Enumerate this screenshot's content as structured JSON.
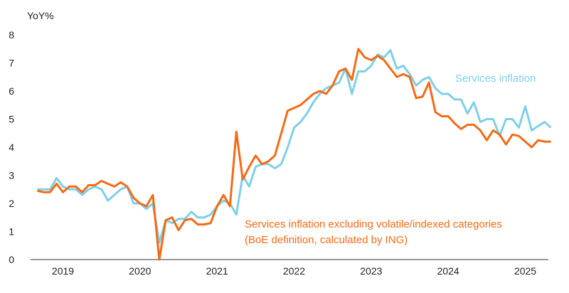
{
  "chart_data": {
    "type": "line",
    "ylabel": "YoY%",
    "ylim": [
      0,
      8
    ],
    "yticks": [
      0,
      1,
      2,
      3,
      4,
      5,
      6,
      7,
      8
    ],
    "xlim": [
      2018.58,
      2025.3
    ],
    "xticks": [
      {
        "label": "2019",
        "x": 2019.0
      },
      {
        "label": "2020",
        "x": 2020.0
      },
      {
        "label": "2021",
        "x": 2021.0
      },
      {
        "label": "2022",
        "x": 2022.0
      },
      {
        "label": "2023",
        "x": 2023.0
      },
      {
        "label": "2024",
        "x": 2024.0
      },
      {
        "label": "2025",
        "x": 2025.0
      }
    ],
    "series": [
      {
        "name": "Services inflation",
        "color": "#7fcfe8",
        "annotation": "Services inflation",
        "x_start": 2018.667,
        "step_months": 1,
        "values": [
          2.5,
          2.5,
          2.5,
          2.9,
          2.6,
          2.5,
          2.5,
          2.3,
          2.5,
          2.6,
          2.5,
          2.1,
          2.3,
          2.5,
          2.6,
          2.0,
          2.0,
          1.8,
          2.0,
          0.6,
          1.4,
          1.3,
          1.45,
          1.45,
          1.7,
          1.5,
          1.5,
          1.6,
          1.9,
          2.1,
          2.0,
          1.6,
          3.0,
          2.6,
          3.3,
          3.4,
          3.4,
          3.25,
          3.4,
          4.0,
          4.7,
          4.9,
          5.2,
          5.6,
          5.9,
          6.1,
          6.2,
          6.3,
          6.8,
          5.9,
          6.7,
          6.7,
          6.9,
          7.3,
          7.2,
          7.45,
          6.8,
          6.9,
          6.6,
          6.2,
          6.4,
          6.5,
          6.1,
          5.9,
          5.9,
          5.7,
          5.7,
          5.2,
          5.6,
          4.9,
          5.0,
          5.0,
          4.4,
          5.0,
          5.0,
          4.7,
          5.45,
          4.6,
          4.75,
          4.9,
          4.7
        ]
      },
      {
        "name": "Services inflation excluding volatile/indexed categories",
        "color": "#f26b16",
        "annotation_line1": "Services inflation excluding volatile/indexed categories",
        "annotation_line2": "(BoE definition, calculated by ING)",
        "x_start": 2018.667,
        "step_months": 1,
        "values": [
          2.45,
          2.4,
          2.4,
          2.7,
          2.4,
          2.6,
          2.6,
          2.4,
          2.65,
          2.65,
          2.8,
          2.7,
          2.6,
          2.75,
          2.6,
          2.2,
          2.0,
          1.9,
          2.3,
          0.0,
          1.4,
          1.5,
          1.05,
          1.4,
          1.45,
          1.25,
          1.25,
          1.3,
          1.9,
          2.3,
          1.9,
          4.55,
          2.85,
          3.3,
          3.7,
          3.4,
          3.5,
          3.7,
          4.5,
          5.3,
          5.4,
          5.5,
          5.7,
          5.9,
          6.0,
          5.9,
          6.2,
          6.7,
          6.8,
          6.4,
          7.5,
          7.2,
          7.1,
          7.25,
          7.1,
          6.8,
          6.5,
          6.6,
          6.5,
          5.75,
          5.8,
          6.3,
          5.25,
          5.1,
          5.1,
          4.85,
          4.65,
          4.8,
          4.8,
          4.6,
          4.25,
          4.6,
          4.45,
          4.1,
          4.45,
          4.4,
          4.2,
          4.0,
          4.25,
          4.2,
          4.2
        ]
      }
    ]
  }
}
